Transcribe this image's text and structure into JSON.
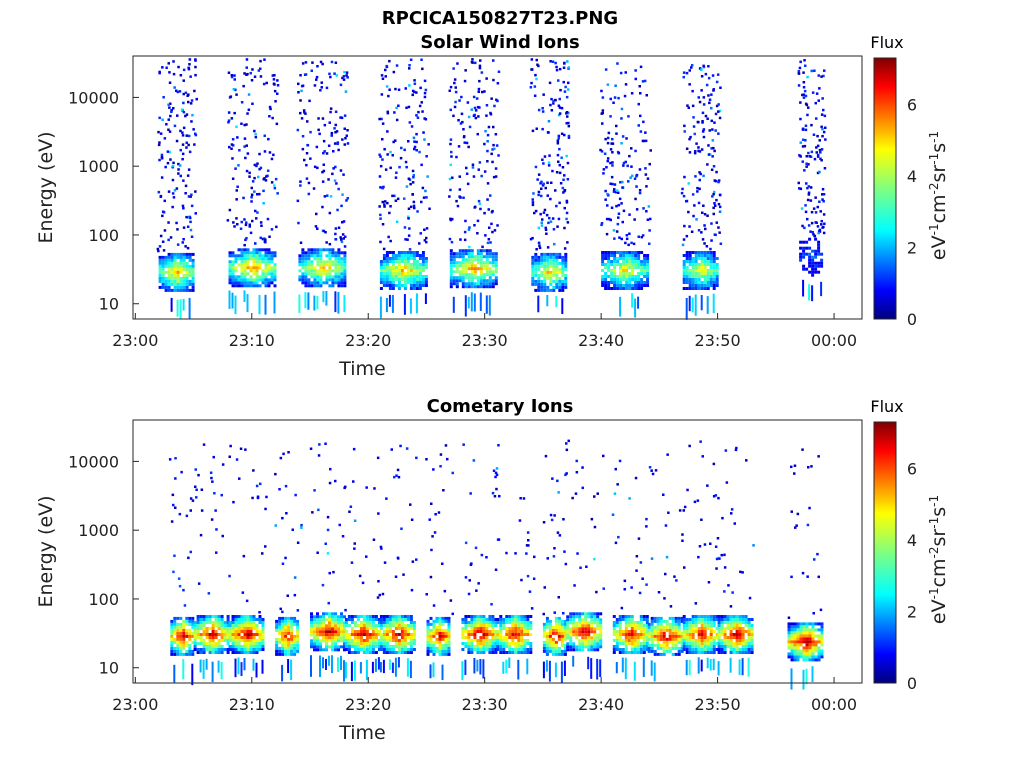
{
  "figure": {
    "title": "RPCICA150827T23.PNG"
  },
  "colors": {
    "colormap": [
      "#00007f",
      "#0000ff",
      "#0080ff",
      "#00ffff",
      "#80ff80",
      "#ffff00",
      "#ff8000",
      "#ff0000",
      "#7f0000"
    ],
    "axes": "#262626",
    "tick_text": "#262626"
  },
  "chart_data": [
    {
      "type": "heatmap",
      "title": "Solar Wind Ions",
      "xlabel": "Time",
      "ylabel": "Energy (eV)",
      "y_scale": "log",
      "ylim": [
        6,
        40000
      ],
      "xlim": [
        "23:00",
        "00:00"
      ],
      "x_ticks": [
        "23:00",
        "23:10",
        "23:20",
        "23:30",
        "23:40",
        "23:50",
        "00:00"
      ],
      "y_ticks": [
        "10",
        "100",
        "1000",
        "10000"
      ],
      "colorbar": {
        "label": "Flux",
        "ticks": [
          "0",
          "2",
          "4",
          "6"
        ],
        "range": [
          0,
          7.3
        ]
      },
      "bursts": [
        {
          "start": "23:02",
          "end": "23:05",
          "peak_energy_eV": 30,
          "peak_flux": 5.2
        },
        {
          "start": "23:08",
          "end": "23:12",
          "peak_energy_eV": 35,
          "peak_flux": 5.4
        },
        {
          "start": "23:14",
          "end": "23:18",
          "peak_energy_eV": 35,
          "peak_flux": 5.0
        },
        {
          "start": "23:21",
          "end": "23:25",
          "peak_energy_eV": 32,
          "peak_flux": 5.1
        },
        {
          "start": "23:27",
          "end": "23:31",
          "peak_energy_eV": 34,
          "peak_flux": 5.3
        },
        {
          "start": "23:34",
          "end": "23:37",
          "peak_energy_eV": 30,
          "peak_flux": 5.0
        },
        {
          "start": "23:40",
          "end": "23:44",
          "peak_energy_eV": 32,
          "peak_flux": 4.8
        },
        {
          "start": "23:47",
          "end": "23:50",
          "peak_energy_eV": 32,
          "peak_flux": 4.6
        },
        {
          "start": "23:57",
          "end": "23:59",
          "peak_energy_eV": 50,
          "peak_flux": 1.5
        }
      ]
    },
    {
      "type": "heatmap",
      "title": "Cometary Ions",
      "xlabel": "Time",
      "ylabel": "Energy (eV)",
      "y_scale": "log",
      "ylim": [
        6,
        40000
      ],
      "xlim": [
        "23:00",
        "00:00"
      ],
      "x_ticks": [
        "23:00",
        "23:10",
        "23:20",
        "23:30",
        "23:40",
        "23:50",
        "00:00"
      ],
      "y_ticks": [
        "10",
        "100",
        "1000",
        "10000"
      ],
      "colorbar": {
        "label": "Flux",
        "ticks": [
          "0",
          "2",
          "4",
          "6"
        ],
        "range": [
          0,
          7.3
        ]
      },
      "bursts": [
        {
          "start": "23:03",
          "end": "23:05",
          "peak_energy_eV": 30,
          "peak_flux": 7.0
        },
        {
          "start": "23:05",
          "end": "23:08",
          "peak_energy_eV": 32,
          "peak_flux": 6.8
        },
        {
          "start": "23:08",
          "end": "23:11",
          "peak_energy_eV": 32,
          "peak_flux": 7.0
        },
        {
          "start": "23:12",
          "end": "23:14",
          "peak_energy_eV": 30,
          "peak_flux": 6.6
        },
        {
          "start": "23:15",
          "end": "23:18",
          "peak_energy_eV": 35,
          "peak_flux": 7.0
        },
        {
          "start": "23:18",
          "end": "23:21",
          "peak_energy_eV": 32,
          "peak_flux": 7.0
        },
        {
          "start": "23:21",
          "end": "23:24",
          "peak_energy_eV": 32,
          "peak_flux": 6.9
        },
        {
          "start": "23:25",
          "end": "23:27",
          "peak_energy_eV": 30,
          "peak_flux": 6.8
        },
        {
          "start": "23:28",
          "end": "23:31",
          "peak_energy_eV": 32,
          "peak_flux": 7.0
        },
        {
          "start": "23:31",
          "end": "23:34",
          "peak_energy_eV": 32,
          "peak_flux": 6.8
        },
        {
          "start": "23:35",
          "end": "23:37",
          "peak_energy_eV": 30,
          "peak_flux": 7.0
        },
        {
          "start": "23:37",
          "end": "23:40",
          "peak_energy_eV": 35,
          "peak_flux": 7.0
        },
        {
          "start": "23:41",
          "end": "23:44",
          "peak_energy_eV": 32,
          "peak_flux": 6.8
        },
        {
          "start": "23:44",
          "end": "23:47",
          "peak_energy_eV": 30,
          "peak_flux": 6.9
        },
        {
          "start": "23:47",
          "end": "23:50",
          "peak_energy_eV": 32,
          "peak_flux": 6.8
        },
        {
          "start": "23:50",
          "end": "23:53",
          "peak_energy_eV": 32,
          "peak_flux": 7.0
        },
        {
          "start": "23:56",
          "end": "23:59",
          "peak_energy_eV": 25,
          "peak_flux": 7.1
        }
      ]
    }
  ]
}
